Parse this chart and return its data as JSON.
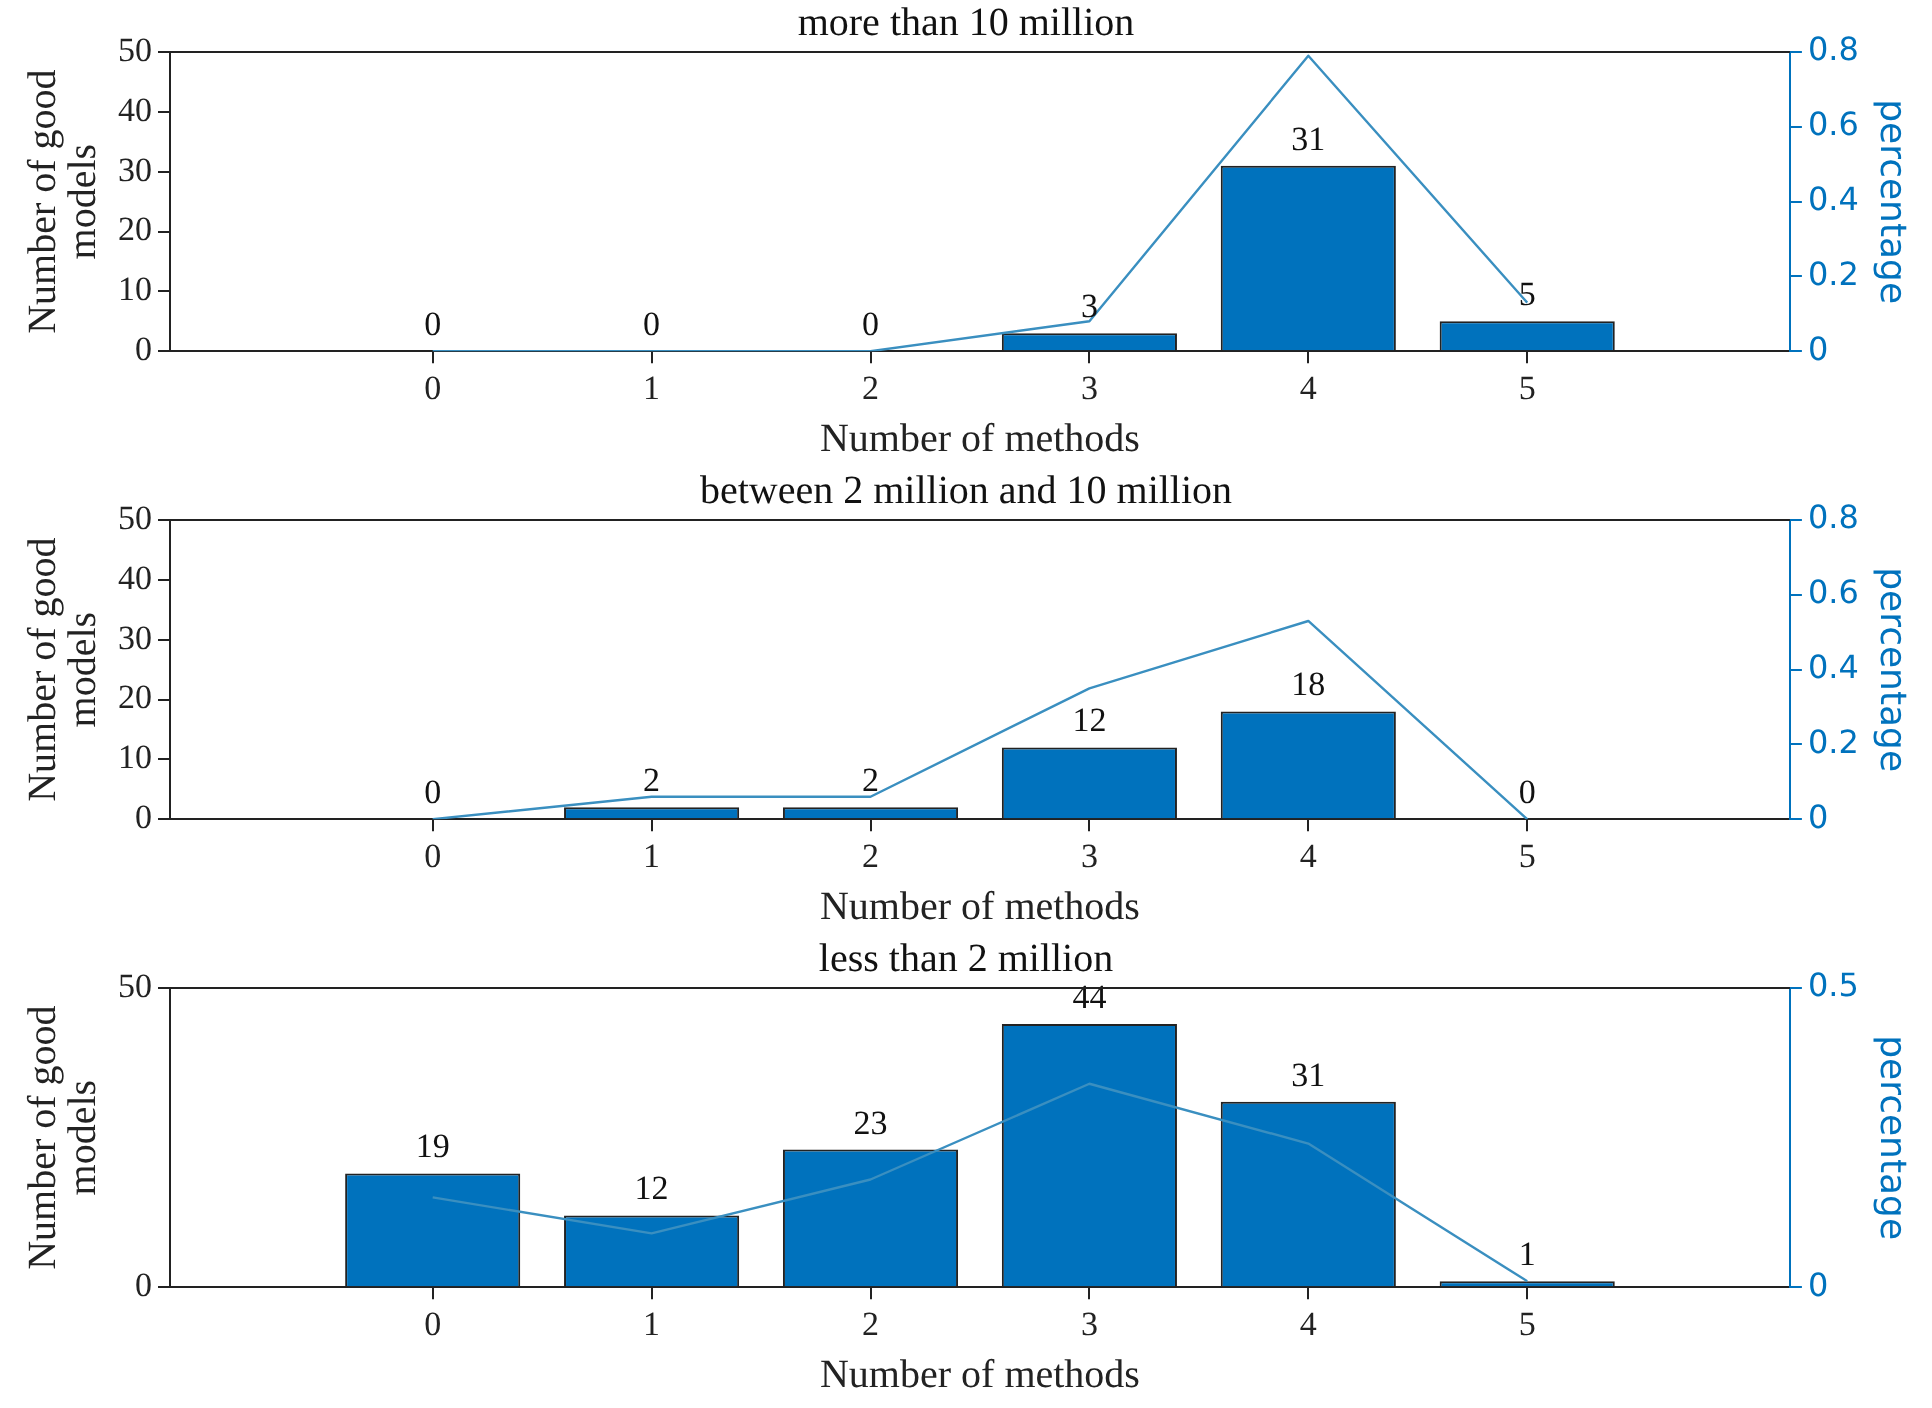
{
  "chart_data": [
    {
      "type": "bar",
      "title": "more than 10 million",
      "xlabel": "Number of methods",
      "ylabel": "Number of good models",
      "y2label": "percentage",
      "x": [
        0,
        1,
        2,
        3,
        4,
        5
      ],
      "xlim": [
        -1.2,
        6.2
      ],
      "xticks": [
        0,
        1,
        2,
        3,
        4,
        5
      ],
      "ylim": [
        0,
        50
      ],
      "yticks": [
        0,
        10,
        20,
        30,
        40,
        50
      ],
      "y2lim": [
        0,
        0.8
      ],
      "y2ticks": [
        0,
        0.2,
        0.4,
        0.6,
        0.8
      ],
      "grid": false,
      "marker": "none",
      "series": [
        {
          "color": "#0072bd",
          "values": [
            0,
            0,
            0,
            3,
            31,
            5
          ],
          "value_labels": [
            "0",
            "0",
            "0",
            "3",
            "31",
            "5"
          ]
        },
        {
          "type": "line",
          "axis": "y2",
          "color": "#3a8fc0",
          "values": [
            0,
            0,
            0,
            0.08,
            0.79,
            0.13
          ]
        }
      ]
    },
    {
      "type": "bar",
      "title": "between 2 million and 10 million",
      "xlabel": "Number of methods",
      "ylabel": "Number of good models",
      "y2label": "percentage",
      "x": [
        0,
        1,
        2,
        3,
        4,
        5
      ],
      "xlim": [
        -1.2,
        6.2
      ],
      "xticks": [
        0,
        1,
        2,
        3,
        4,
        5
      ],
      "ylim": [
        0,
        50
      ],
      "yticks": [
        0,
        10,
        20,
        30,
        40,
        50
      ],
      "y2lim": [
        0,
        0.8
      ],
      "y2ticks": [
        0,
        0.2,
        0.4,
        0.6,
        0.8
      ],
      "grid": false,
      "marker": "none",
      "series": [
        {
          "color": "#0072bd",
          "values": [
            0,
            2,
            2,
            12,
            18,
            0
          ],
          "value_labels": [
            "0",
            "2",
            "2",
            "12",
            "18",
            "0"
          ]
        },
        {
          "type": "line",
          "axis": "y2",
          "color": "#3a8fc0",
          "values": [
            0,
            0.06,
            0.06,
            0.35,
            0.53,
            0
          ]
        }
      ]
    },
    {
      "type": "bar",
      "title": "less than 2 million",
      "xlabel": "Number of methods",
      "ylabel": "Number of good models",
      "y2label": "percentage",
      "x": [
        0,
        1,
        2,
        3,
        4,
        5
      ],
      "xlim": [
        -1.2,
        6.2
      ],
      "xticks": [
        0,
        1,
        2,
        3,
        4,
        5
      ],
      "ylim": [
        0,
        50
      ],
      "yticks": [
        0,
        50
      ],
      "y2lim": [
        0,
        0.5
      ],
      "y2ticks": [
        0,
        0.5
      ],
      "grid": false,
      "marker": "none",
      "series": [
        {
          "color": "#0072bd",
          "values": [
            19,
            12,
            23,
            44,
            31,
            1
          ],
          "value_labels": [
            "19",
            "12",
            "23",
            "44",
            "31",
            "1"
          ]
        },
        {
          "type": "line",
          "axis": "y2",
          "color": "#3a8fc0",
          "values": [
            0.15,
            0.09,
            0.18,
            0.34,
            0.24,
            0.01
          ]
        }
      ]
    }
  ]
}
